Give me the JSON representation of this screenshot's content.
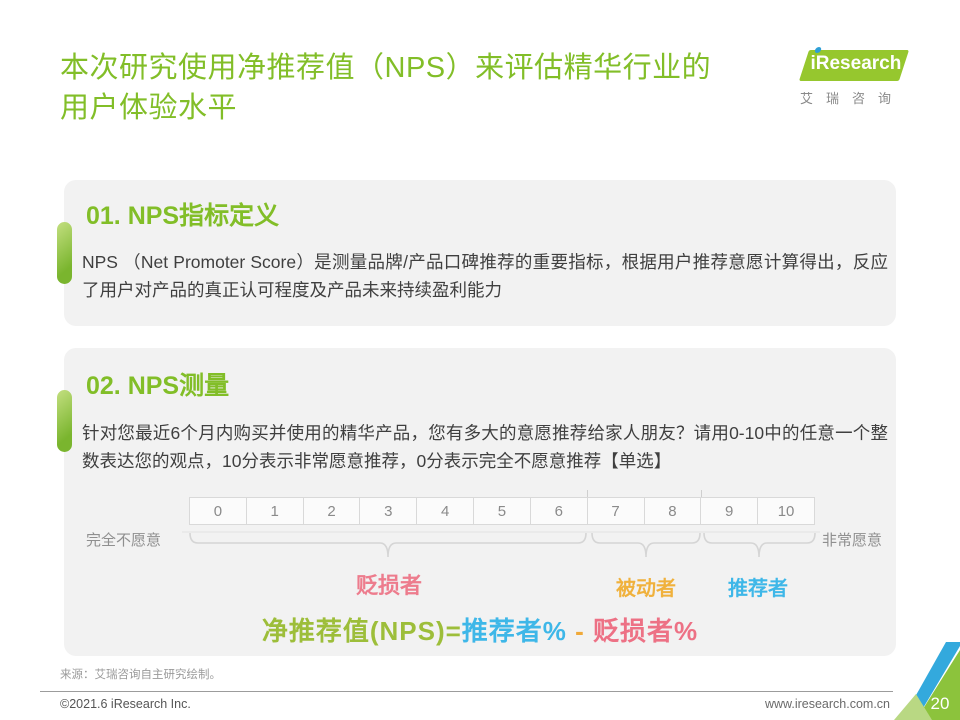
{
  "slide": {
    "title_line1": "本次研究使用净推荐值（NPS）来评估精华行业的",
    "title_line2": "用户体验水平",
    "page_number": "20"
  },
  "logo": {
    "brand": "iResearch",
    "subtitle": "艾瑞咨询"
  },
  "sections": [
    {
      "heading": "01. NPS指标定义",
      "body": "NPS （Net Promoter Score）是测量品牌/产品口碑推荐的重要指标，根据用户推荐意愿计算得出，反应了用户对产品的真正认可程度及产品未来持续盈利能力"
    },
    {
      "heading": "02. NPS测量",
      "body": "针对您最近6个月内购买并使用的精华产品，您有多大的意愿推荐给家人朋友？请用0-10中的任意一个整数表达您的观点，10分表示非常愿意推荐，0分表示完全不愿意推荐【单选】"
    }
  ],
  "scale": {
    "values": [
      "0",
      "1",
      "2",
      "3",
      "4",
      "5",
      "6",
      "7",
      "8",
      "9",
      "10"
    ],
    "left_label": "完全不愿意",
    "right_label": "非常愿意",
    "groups": [
      {
        "label": "贬损者",
        "range": "0-6",
        "color": "#ED7C8D"
      },
      {
        "label": "被动者",
        "range": "7-8",
        "color": "#F0B13C"
      },
      {
        "label": "推荐者",
        "range": "9-10",
        "color": "#3EB7E8"
      }
    ]
  },
  "formula": {
    "part_nps": "净推荐值(NPS)=",
    "part_promoter": "推荐者%",
    "part_minus": " - ",
    "part_detractor": "贬损者%"
  },
  "footer": {
    "source": "来源：艾瑞咨询自主研究绘制。",
    "copyright": "©2021.6 iResearch Inc.",
    "website": "www.iresearch.com.cn"
  },
  "colors": {
    "brand_green": "#82BE28",
    "logo_green": "#96C72E",
    "logo_dot_blue": "#2E9FD6",
    "card_bg": "#F2F2F2",
    "detractor_pink": "#ED7C8D",
    "passive_orange": "#F0B13C",
    "promoter_blue": "#3EB7E8",
    "corner_blue": "#33A9DD",
    "corner_green": "#8CC33C",
    "corner_light_green": "#B9D883"
  }
}
